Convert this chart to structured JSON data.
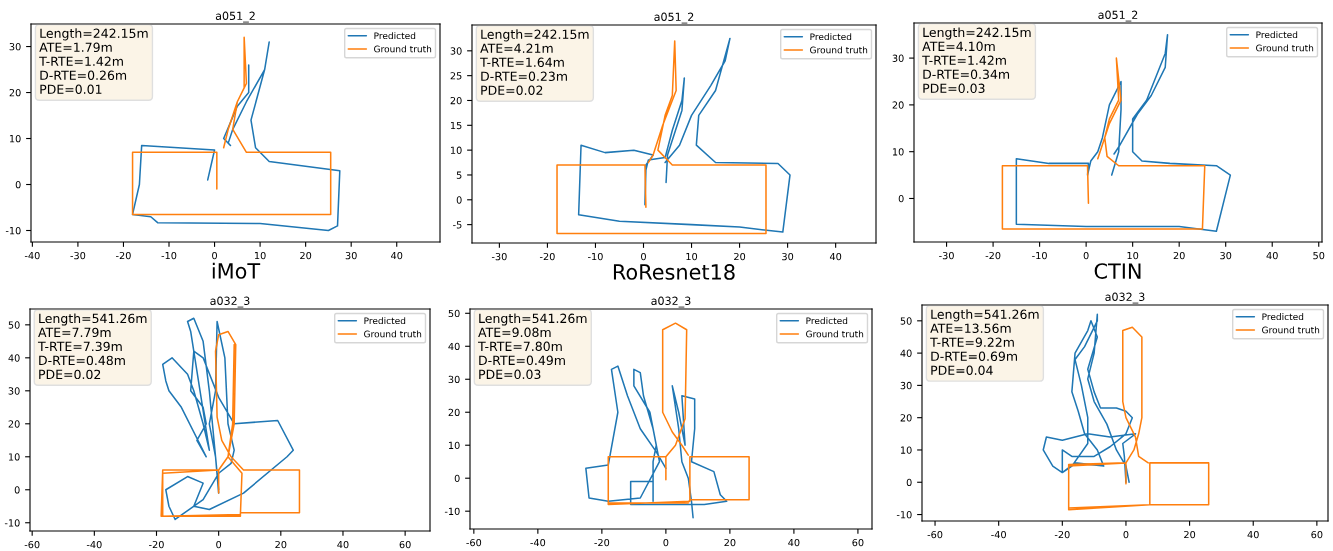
{
  "chart_data": [
    {
      "type": "line",
      "title": "a051_2",
      "xlim": [
        -40.3,
        49.5
      ],
      "ylim": [
        -12.5,
        34.9
      ],
      "xticks": [
        -40,
        -30,
        -20,
        -10,
        0,
        10,
        20,
        30,
        40
      ],
      "yticks": [
        -10,
        0,
        10,
        20,
        30
      ],
      "legend": "top right",
      "annotations": [
        "Length=242.15m\nATE=1.79m\nT-RTE=1.42m\nD-RTE=0.26m\nPDE=0.01",
        "iMoT"
      ],
      "series": [
        {
          "name": "Predicted",
          "color": "#1f77b4",
          "x": [
            -1.5,
            0,
            -16,
            -16.5,
            -18,
            -14,
            -12.5,
            10,
            25,
            27,
            27.5,
            12,
            9,
            8,
            11,
            12,
            11,
            7,
            4,
            3,
            3.5,
            2,
            5,
            7.5,
            7.5
          ],
          "values": [
            1,
            7.5,
            8.5,
            0,
            -6.5,
            -7,
            -8.3,
            -8.5,
            -10,
            -9,
            3,
            5,
            8,
            14,
            25,
            31,
            25,
            18,
            12,
            9,
            8.5,
            10,
            17,
            20,
            26
          ]
        },
        {
          "name": "Ground truth",
          "color": "#ff7f0e",
          "x": [
            0.5,
            0.5,
            -18,
            -18,
            25.5,
            25.5,
            7,
            4,
            5,
            6.5,
            6.5,
            7,
            5,
            3,
            2
          ],
          "values": [
            -1,
            7,
            7,
            -6.5,
            -6.5,
            7,
            7,
            12,
            18,
            21,
            32,
            22,
            18,
            12,
            8
          ]
        }
      ]
    },
    {
      "type": "line",
      "title": "a051_2",
      "xlim": [
        -35.7,
        48.4
      ],
      "ylim": [
        -8.7,
        35.2
      ],
      "xticks": [
        -30,
        -20,
        -10,
        0,
        10,
        20,
        30,
        40
      ],
      "yticks": [
        -5,
        0,
        5,
        10,
        15,
        20,
        25,
        30
      ],
      "legend": "top right",
      "annotations": [
        "Length=242.15m\nATE=4.21m\nT-RTE=1.64m\nD-RTE=0.23m\nPDE=0.02",
        "RoResnet18"
      ],
      "series": [
        {
          "name": "Predicted",
          "color": "#1f77b4",
          "x": [
            4.7,
            5,
            8,
            8.5,
            8,
            6,
            4.5,
            1,
            0.5,
            0.3,
            0.5,
            2,
            -2,
            -8,
            -13,
            -13.5,
            -5,
            10,
            20,
            29,
            30.5,
            28,
            15,
            11,
            11.5,
            15,
            18,
            17,
            14,
            10,
            7.5,
            4.5
          ],
          "values": [
            3.5,
            9,
            18,
            24.5,
            20,
            14,
            8.5,
            8,
            6,
            -1,
            7,
            9,
            10,
            9.5,
            11,
            -3,
            -4.3,
            -5,
            -5.5,
            -6.5,
            5,
            7.3,
            7.5,
            11,
            17,
            22,
            32.5,
            28,
            23,
            17,
            11,
            7.5
          ]
        },
        {
          "name": "Ground truth",
          "color": "#ff7f0e",
          "x": [
            0.5,
            0.3,
            -18,
            -18,
            25.5,
            25.5,
            6,
            3,
            4.5,
            6,
            6.5,
            6.8,
            4,
            2,
            1
          ],
          "values": [
            -1.5,
            7,
            7,
            -6.8,
            -6.8,
            7,
            7,
            10,
            17,
            21,
            32,
            22,
            15,
            9,
            7.5
          ]
        }
      ]
    },
    {
      "type": "line",
      "title": "a051_2",
      "xlim": [
        -37,
        50.7
      ],
      "ylim": [
        -9.3,
        37.5
      ],
      "xticks": [
        -30,
        -20,
        -10,
        0,
        10,
        20,
        30,
        40,
        50
      ],
      "yticks": [
        0,
        10,
        20,
        30
      ],
      "legend": "top right",
      "annotations": [
        "Length=242.15m\nATE=4.10m\nT-RTE=1.42m\nD-RTE=0.34m\nPDE=0.03",
        "CTIN"
      ],
      "series": [
        {
          "name": "Predicted",
          "color": "#1f77b4",
          "x": [
            5.5,
            7,
            7.5,
            7.5,
            5,
            3.5,
            2.5,
            1,
            0.3,
            0.5,
            -8,
            -15,
            -15,
            0,
            20,
            28,
            31,
            28,
            18,
            12,
            10,
            10,
            13,
            17,
            17.5,
            17,
            14,
            11,
            7,
            6
          ],
          "values": [
            5,
            10,
            19,
            25,
            20,
            13,
            10,
            8,
            5,
            7.5,
            7.5,
            8.5,
            -5.5,
            -6,
            -6,
            -7,
            5,
            7,
            7.5,
            8,
            10,
            17,
            21,
            31,
            35,
            28,
            22,
            18,
            11,
            9.5
          ]
        },
        {
          "name": "Ground truth",
          "color": "#ff7f0e",
          "x": [
            0.5,
            0.3,
            -18,
            -18,
            25,
            25.5,
            7,
            4.5,
            4,
            5,
            7,
            6.5,
            7.5,
            5,
            3,
            2.5
          ],
          "values": [
            -1,
            7,
            7,
            -6.5,
            -6.5,
            7,
            7,
            9,
            13,
            17,
            21,
            30,
            21,
            16,
            10,
            8.5
          ]
        }
      ]
    },
    {
      "type": "line",
      "title": "a032_3",
      "xlim": [
        -60.7,
        68
      ],
      "ylim": [
        -12.5,
        54.8
      ],
      "xticks": [
        -60,
        -40,
        -20,
        0,
        20,
        40,
        60
      ],
      "yticks": [
        -10,
        0,
        10,
        20,
        30,
        40,
        50
      ],
      "legend": "top right",
      "annotations": [
        "Length=541.26m\nATE=7.79m\nT-RTE=7.39m\nD-RTE=0.48m\nPDE=0.02"
      ],
      "series": [
        {
          "name": "Predicted",
          "color": "#1f77b4",
          "x": [
            0,
            -1,
            -3,
            -1,
            -0.5,
            2,
            3,
            5,
            4,
            0,
            -5,
            -14,
            -16,
            -17,
            -10,
            -5,
            -8,
            -3,
            8,
            22,
            24,
            19,
            5,
            0,
            -5,
            -8,
            -9,
            -5,
            -4,
            -7,
            -4,
            -12,
            -16,
            -17,
            -18,
            -15,
            -10,
            -8,
            -5,
            -3,
            -9,
            -10,
            -8,
            -5,
            -3,
            -1,
            0
          ],
          "values": [
            -1,
            10,
            20,
            30,
            51,
            40,
            20,
            12,
            8,
            5,
            -3,
            -9,
            -5,
            0,
            4,
            2,
            -5,
            -6,
            -1,
            10,
            12,
            21,
            20,
            28,
            40,
            42,
            30,
            25,
            20,
            15,
            10,
            25,
            30,
            33,
            38,
            40,
            35,
            30,
            20,
            12,
            48,
            51,
            52,
            45,
            30,
            10,
            0
          ]
        },
        {
          "name": "Ground truth",
          "color": "#ff7f0e",
          "x": [
            0,
            0,
            -18,
            -18.5,
            7,
            7.5,
            3,
            5,
            5.5,
            3,
            0,
            -1,
            -0.5,
            1,
            4,
            8,
            26,
            26,
            7,
            7,
            -18,
            -18,
            0,
            3,
            4.5,
            5
          ],
          "values": [
            -1,
            6,
            6,
            -8,
            -7.5,
            5,
            10,
            20,
            44,
            48,
            47,
            42,
            22,
            15,
            10,
            6,
            6,
            -7,
            -7,
            -8,
            -8,
            5,
            6,
            10,
            20,
            44
          ]
        }
      ]
    },
    {
      "type": "line",
      "title": "a032_3",
      "xlim": [
        -61.2,
        64.4
      ],
      "ylim": [
        -15.4,
        51.3
      ],
      "xticks": [
        -60,
        -40,
        -20,
        0,
        20,
        40,
        60
      ],
      "yticks": [
        -10,
        0,
        10,
        20,
        30,
        40,
        50
      ],
      "legend": "top right",
      "annotations": [
        "Length=541.26m\nATE=9.08m\nT-RTE=7.80m\nD-RTE=0.49m\nPDE=0.03"
      ],
      "series": [
        {
          "name": "Predicted",
          "color": "#1f77b4",
          "x": [
            8.5,
            8,
            7,
            5,
            4,
            2,
            4,
            6,
            5,
            9,
            9,
            8,
            15,
            17,
            19,
            12,
            2,
            -11,
            -11,
            -4,
            -4,
            -4,
            -3,
            -5,
            -10,
            -10,
            -8,
            -7,
            -4,
            -2,
            -8,
            -18,
            -24,
            -25,
            -18,
            -15,
            -17,
            -15,
            -12,
            -8,
            -3,
            0
          ],
          "values": [
            -12,
            -7,
            0,
            5,
            15,
            28,
            20,
            10,
            25,
            24,
            15,
            5,
            2,
            -5,
            -7,
            -8,
            -8,
            -8,
            -1,
            -1,
            -7,
            5,
            10,
            20,
            28,
            33,
            32,
            25,
            15,
            5,
            -6,
            -7,
            -6,
            3,
            4,
            20,
            33,
            34,
            25,
            15,
            8,
            3
          ]
        },
        {
          "name": "Ground truth",
          "color": "#ff7f0e",
          "x": [
            0,
            0,
            -18,
            -18,
            7.5,
            7.5,
            26,
            26,
            7.5,
            7,
            -18,
            -18,
            0,
            3,
            6,
            6.5,
            3,
            -1,
            -1,
            2,
            5,
            7
          ],
          "values": [
            -0.5,
            6.5,
            6.5,
            -8,
            -7,
            6.5,
            6.5,
            -6.5,
            -6.5,
            -7.5,
            -7.5,
            6.5,
            6.5,
            10,
            18,
            45,
            47,
            45,
            20,
            14,
            10,
            7
          ]
        }
      ]
    },
    {
      "type": "line",
      "title": "a032_3",
      "xlim": [
        -64.1,
        63.5
      ],
      "ylim": [
        -12,
        54.9
      ],
      "xticks": [
        -60,
        -40,
        -20,
        0,
        20,
        40,
        60
      ],
      "yticks": [
        -10,
        0,
        10,
        20,
        30,
        40,
        50
      ],
      "legend": "top right",
      "annotations": [
        "Length=541.26m\nATE=13.56m\nT-RTE=9.22m\nD-RTE=0.69m\nPDE=0.04"
      ],
      "series": [
        {
          "name": "Predicted",
          "color": "#1f77b4",
          "x": [
            0,
            -0.5,
            -1,
            3,
            -5,
            -12,
            -20,
            -25,
            -26,
            -23,
            -20,
            -16,
            -7,
            -9,
            -13,
            -15,
            -17,
            -16,
            -12,
            -11,
            -9,
            -12,
            -10,
            -8,
            -3,
            0,
            2,
            0,
            -5,
            -10,
            -17,
            -20,
            -20,
            -17,
            -12,
            -12,
            -14,
            -16,
            -13,
            -9,
            -9,
            -10,
            -12,
            -10,
            -6,
            -3,
            0,
            1
          ],
          "values": [
            0,
            8,
            12,
            15,
            14,
            15,
            13,
            14,
            10,
            5,
            3,
            6,
            5,
            10,
            15,
            22,
            28,
            40,
            47,
            50,
            45,
            35,
            28,
            23,
            23,
            22,
            20,
            15,
            11,
            8,
            8,
            10,
            3,
            5,
            12,
            20,
            30,
            38,
            42,
            50,
            52,
            40,
            32,
            25,
            18,
            10,
            5,
            0
          ]
        },
        {
          "name": "Ground truth",
          "color": "#ff7f0e",
          "x": [
            0,
            0,
            -18,
            -18,
            7.5,
            7.5,
            26,
            26,
            7.5,
            -18,
            -18,
            0,
            2.5,
            4,
            5,
            5,
            2,
            -1,
            -1,
            0,
            3,
            4,
            7
          ],
          "values": [
            -0.5,
            6,
            5.5,
            -8.5,
            -7,
            6,
            6,
            -7,
            -7,
            -8,
            5,
            6,
            10,
            15,
            20,
            45,
            48,
            47,
            25,
            20,
            14,
            8,
            6
          ]
        }
      ]
    }
  ]
}
